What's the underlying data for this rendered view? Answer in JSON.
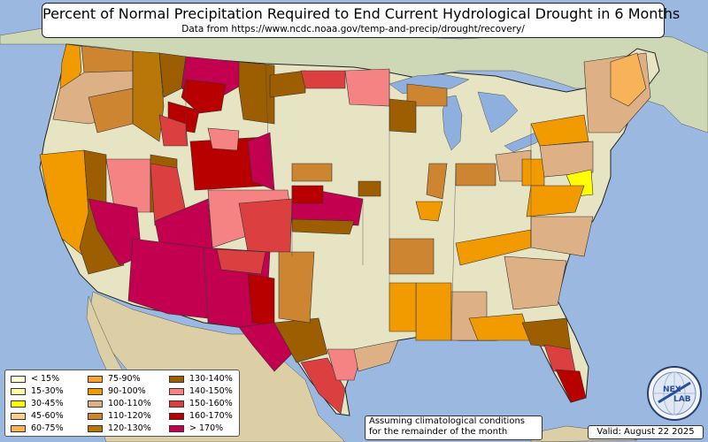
{
  "title": "Percent of Normal Precipitation Required to End Current Hydrological Drought in 6 Months",
  "subtitle": "Data from https://www.ncdc.noaa.gov/temp-and-precip/drought/recovery/",
  "legend": [
    {
      "label": "< 15%",
      "color": "#ffffd9"
    },
    {
      "label": "15-30%",
      "color": "#ffffa6"
    },
    {
      "label": "30-45%",
      "color": "#ffff00"
    },
    {
      "label": "45-60%",
      "color": "#f5d08f"
    },
    {
      "label": "60-75%",
      "color": "#f7b25a"
    },
    {
      "label": "75-90%",
      "color": "#f7a233"
    },
    {
      "label": "90-100%",
      "color": "#f29b00"
    },
    {
      "label": "100-110%",
      "color": "#deb085"
    },
    {
      "label": "110-120%",
      "color": "#cd8532"
    },
    {
      "label": "120-130%",
      "color": "#b87708"
    },
    {
      "label": "130-140%",
      "color": "#9c5e00"
    },
    {
      "label": "140-150%",
      "color": "#f58383"
    },
    {
      "label": "150-160%",
      "color": "#dc3f3f"
    },
    {
      "label": "160-170%",
      "color": "#b80000"
    },
    {
      "label": "> 170%",
      "color": "#c2004f"
    }
  ],
  "note": {
    "line1": "Assuming climatological conditions",
    "line2": "for the remainder of the month"
  },
  "valid": "Valid: August 22 2025",
  "logo": {
    "text": "NEX LAB",
    "icon": "globe-logo-icon"
  },
  "colors": {
    "ocean": "#9ab8e0",
    "land": "#e7e4c4",
    "canada": "#cfd8b6",
    "mexico": "#dccfa6",
    "lakes": "#8fb0de",
    "border": "#222222"
  }
}
